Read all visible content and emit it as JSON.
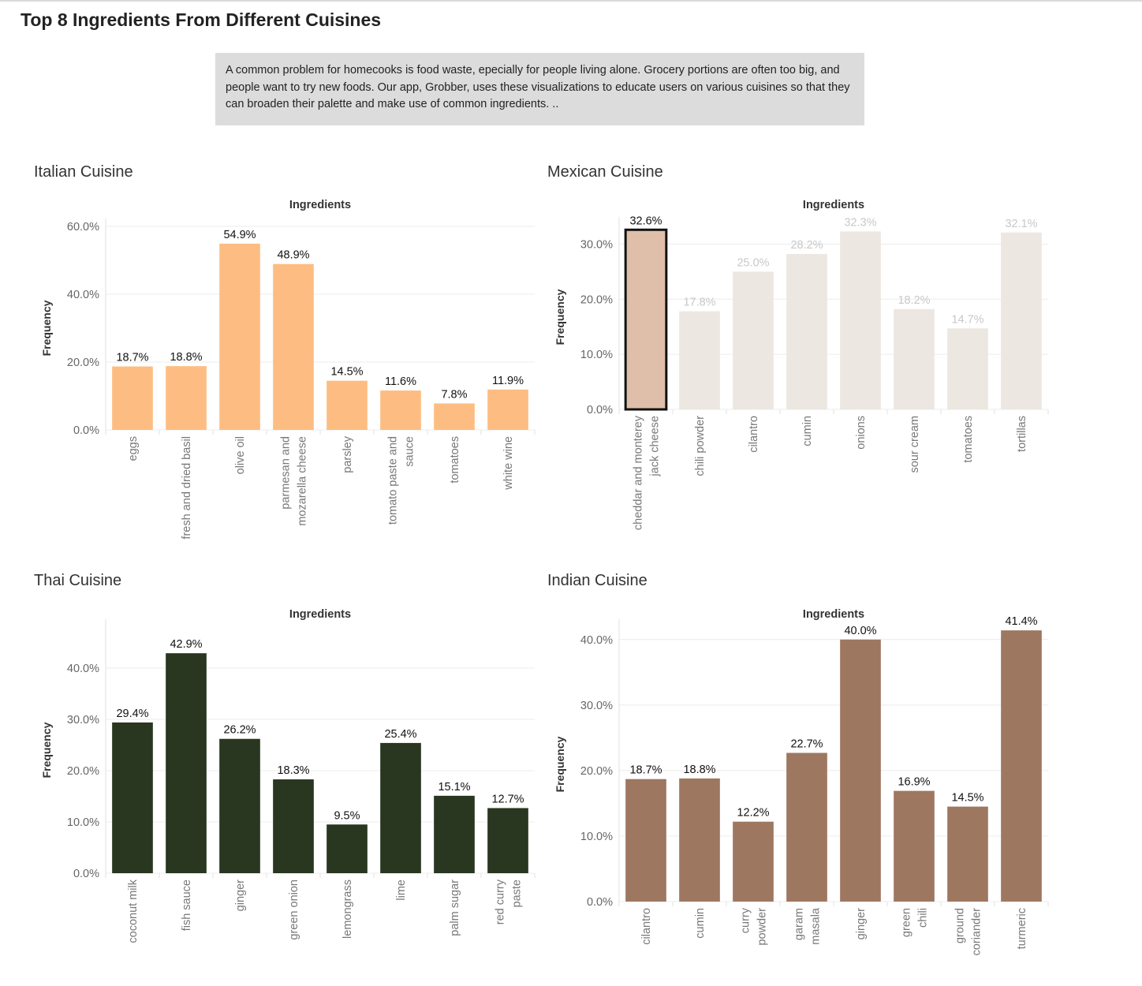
{
  "dashboard": {
    "title": "Top 8 Ingredients From Different Cuisines",
    "description": "A common problem for homecooks is food waste, epecially for people living alone. Grocery portions are often too big, and people want to try new foods. Our app, Grobber, uses these visualizations to educate users on various cuisines so that they can broaden their palette and make use of common ingredients. .."
  },
  "colors": {
    "italian": "#fdbd82",
    "mexican_default": "#ede7e2",
    "mexican_highlight": "#dfbfa9",
    "thai": "#293620",
    "indian": "#9e7761"
  },
  "chart_data": [
    {
      "panel_title": "Italian Cuisine",
      "type": "bar",
      "title": "Ingredients",
      "xlabel": "",
      "ylabel": "Frequency",
      "ylim": [
        0,
        60
      ],
      "y_ticks": [
        0,
        20,
        40,
        60
      ],
      "y_tick_labels": [
        "0.0%",
        "20.0%",
        "40.0%",
        "60.0%"
      ],
      "categories": [
        "eggs",
        "fresh and dried basil",
        "olive oil",
        "parmesan and mozarella cheese",
        "parsley",
        "tomato paste and sauce",
        "tomatoes",
        "white wine"
      ],
      "category_lines": [
        [
          "eggs"
        ],
        [
          "fresh and dried basil"
        ],
        [
          "olive oil"
        ],
        [
          "parmesan and",
          "mozarella cheese"
        ],
        [
          "parsley"
        ],
        [
          "tomato paste and",
          "sauce"
        ],
        [
          "tomatoes"
        ],
        [
          "white wine"
        ]
      ],
      "values": [
        18.7,
        18.8,
        54.9,
        48.9,
        14.5,
        11.6,
        7.8,
        11.9
      ],
      "value_labels": [
        "18.7%",
        "18.8%",
        "54.9%",
        "48.9%",
        "14.5%",
        "11.6%",
        "7.8%",
        "11.9%"
      ],
      "highlight_index": null
    },
    {
      "panel_title": "Mexican Cuisine",
      "type": "bar",
      "title": "Ingredients",
      "xlabel": "",
      "ylabel": "Frequency",
      "ylim": [
        0,
        33.5
      ],
      "y_ticks": [
        0,
        10,
        20,
        30
      ],
      "y_tick_labels": [
        "0.0%",
        "10.0%",
        "20.0%",
        "30.0%"
      ],
      "categories": [
        "cheddar and monterey jack cheese",
        "chili powder",
        "cilantro",
        "cumin",
        "onions",
        "sour cream",
        "tomatoes",
        "tortillas"
      ],
      "category_lines": [
        [
          "cheddar and monterey",
          "jack cheese"
        ],
        [
          "chili powder"
        ],
        [
          "cilantro"
        ],
        [
          "cumin"
        ],
        [
          "onions"
        ],
        [
          "sour cream"
        ],
        [
          "tomatoes"
        ],
        [
          "tortillas"
        ]
      ],
      "values": [
        32.6,
        17.8,
        25.0,
        28.2,
        32.3,
        18.2,
        14.7,
        32.1
      ],
      "value_labels": [
        "32.6%",
        "17.8%",
        "25.0%",
        "28.2%",
        "32.3%",
        "18.2%",
        "14.7%",
        "32.1%"
      ],
      "highlight_index": 0
    },
    {
      "panel_title": "Thai Cuisine",
      "type": "bar",
      "title": "Ingredients",
      "xlabel": "",
      "ylabel": "Frequency",
      "ylim": [
        0,
        48
      ],
      "y_ticks": [
        0,
        10,
        20,
        30,
        40
      ],
      "y_tick_labels": [
        "0.0%",
        "10.0%",
        "20.0%",
        "30.0%",
        "40.0%"
      ],
      "categories": [
        "coconut milk",
        "fish sauce",
        "ginger",
        "green onion",
        "lemongrass",
        "lime",
        "palm sugar",
        "red curry paste"
      ],
      "category_lines": [
        [
          "coconut milk"
        ],
        [
          "fish sauce"
        ],
        [
          "ginger"
        ],
        [
          "green onion"
        ],
        [
          "lemongrass"
        ],
        [
          "lime"
        ],
        [
          "palm sugar"
        ],
        [
          "red curry",
          "paste"
        ]
      ],
      "values": [
        29.4,
        42.9,
        26.2,
        18.3,
        9.5,
        25.4,
        15.1,
        12.7
      ],
      "value_labels": [
        "29.4%",
        "42.9%",
        "26.2%",
        "18.3%",
        "9.5%",
        "25.4%",
        "15.1%",
        "12.7%"
      ],
      "highlight_index": null
    },
    {
      "panel_title": "Indian Cuisine",
      "type": "bar",
      "title": "Ingredients",
      "xlabel": "",
      "ylabel": "Frequency",
      "ylim": [
        0,
        41.9
      ],
      "y_ticks": [
        0,
        10,
        20,
        30,
        40
      ],
      "y_tick_labels": [
        "0.0%",
        "10.0%",
        "20.0%",
        "30.0%",
        "40.0%"
      ],
      "categories": [
        "cilantro",
        "cumin",
        "curry powder",
        "garam masala",
        "ginger",
        "green chili",
        "ground coriander",
        "turmeric"
      ],
      "category_lines": [
        [
          "cilantro"
        ],
        [
          "cumin"
        ],
        [
          "curry",
          "powder"
        ],
        [
          "garam",
          "masala"
        ],
        [
          "ginger"
        ],
        [
          "green",
          "chili"
        ],
        [
          "ground",
          "coriander"
        ],
        [
          "turmeric"
        ]
      ],
      "values": [
        18.7,
        18.8,
        12.2,
        22.7,
        40.0,
        16.9,
        14.5,
        41.4
      ],
      "value_labels": [
        "18.7%",
        "18.8%",
        "12.2%",
        "22.7%",
        "40.0%",
        "16.9%",
        "14.5%",
        "41.4%"
      ],
      "highlight_index": null
    }
  ]
}
